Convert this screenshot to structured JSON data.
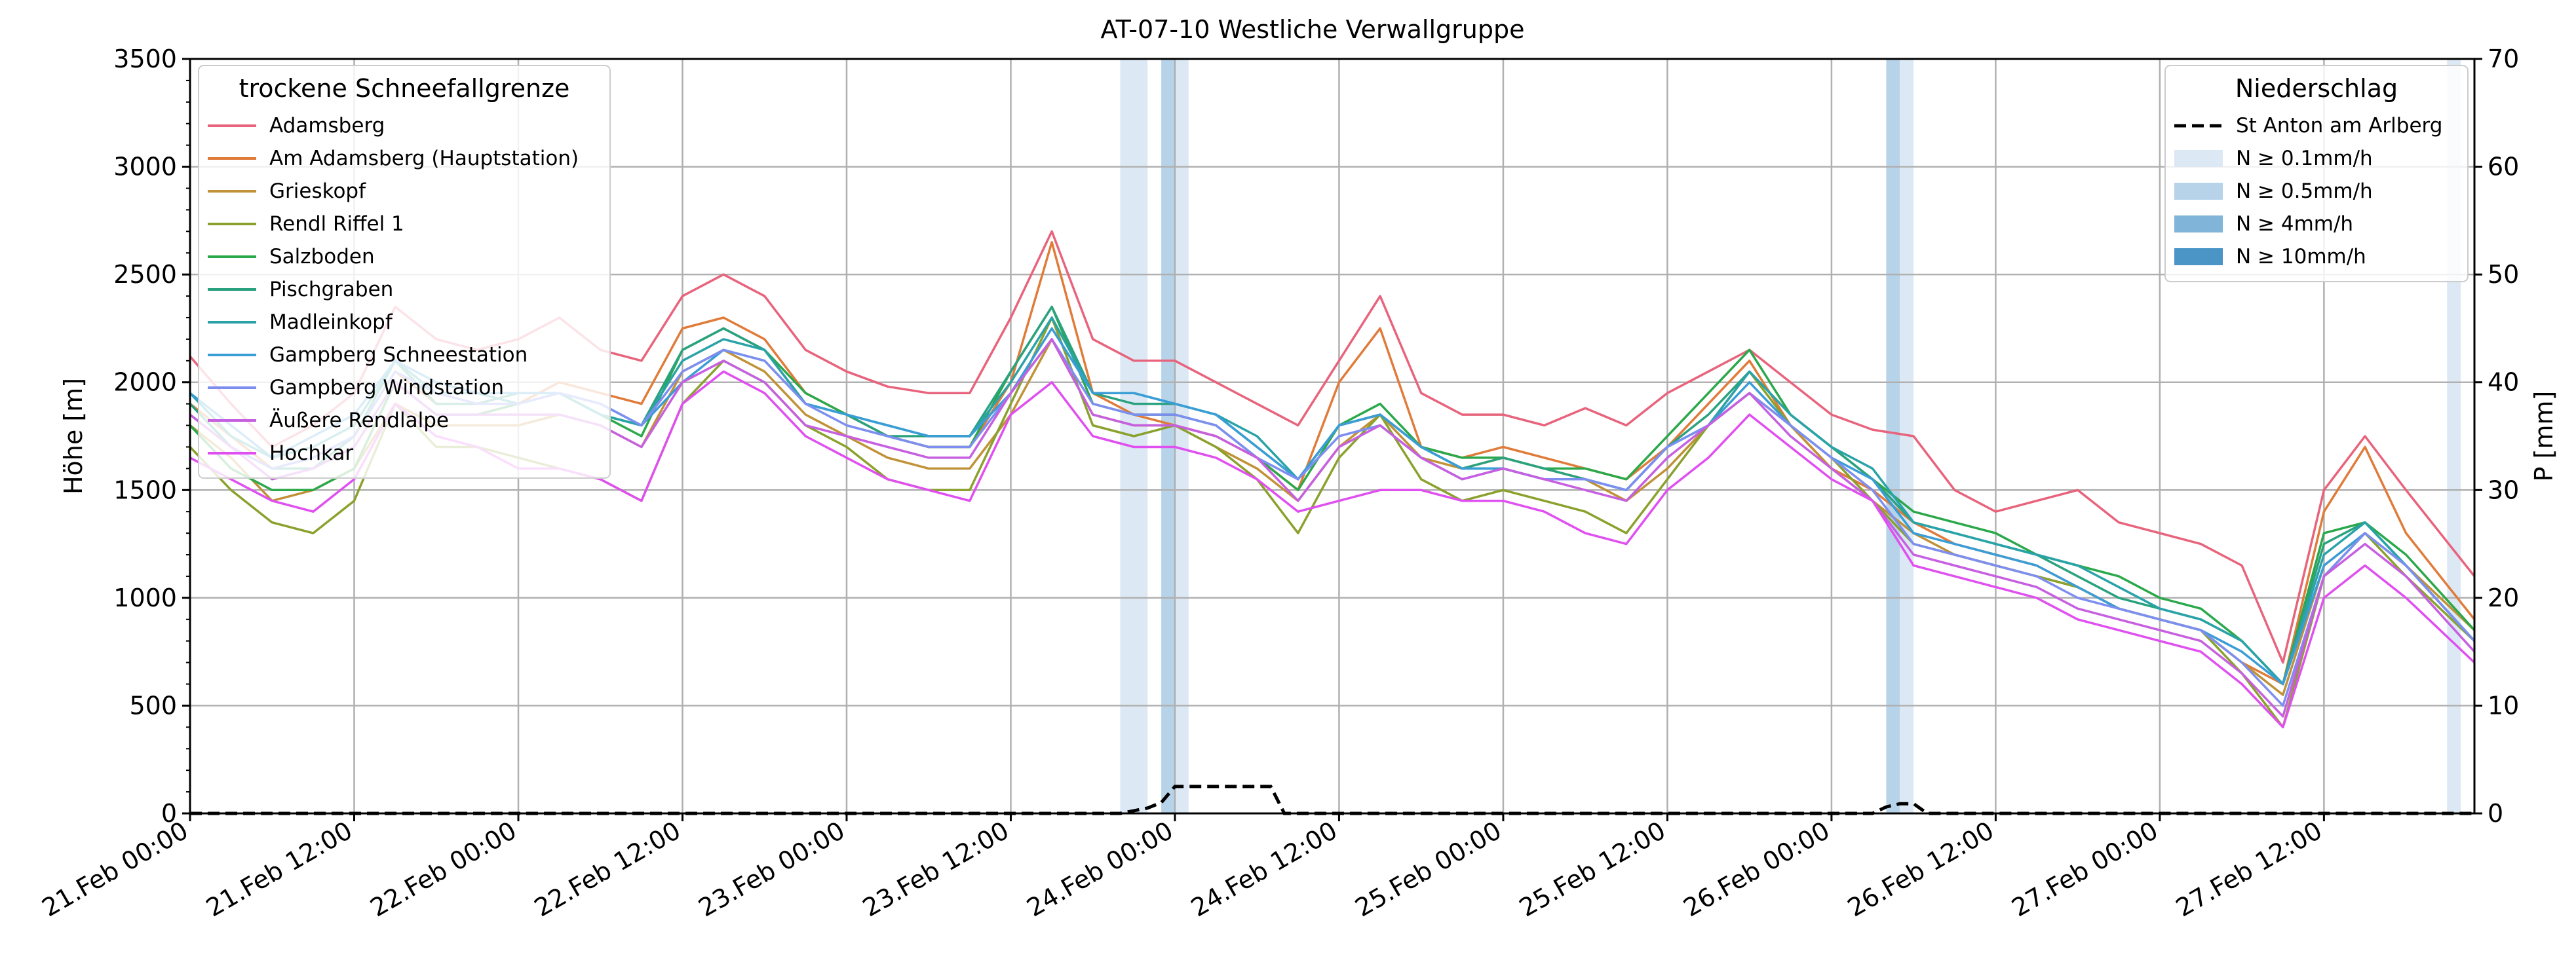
{
  "chart_data": {
    "type": "line",
    "title": "AT-07-10 Westliche Verwallgruppe",
    "ylabel": "Höhe [m]",
    "y2label": "P [mm]",
    "ylim": [
      0,
      3500
    ],
    "y2lim": [
      0,
      70
    ],
    "yticks": [
      0,
      500,
      1000,
      1500,
      2000,
      2500,
      3000,
      3500
    ],
    "y2ticks": [
      0,
      10,
      20,
      30,
      40,
      50,
      60,
      70
    ],
    "xlim_hours": [
      0,
      167
    ],
    "xticks": [
      {
        "h": 0,
        "label": "21.Feb 00:00"
      },
      {
        "h": 12,
        "label": "21.Feb 12:00"
      },
      {
        "h": 24,
        "label": "22.Feb 00:00"
      },
      {
        "h": 36,
        "label": "22.Feb 12:00"
      },
      {
        "h": 48,
        "label": "23.Feb 00:00"
      },
      {
        "h": 60,
        "label": "23.Feb 12:00"
      },
      {
        "h": 72,
        "label": "24.Feb 00:00"
      },
      {
        "h": 84,
        "label": "24.Feb 12:00"
      },
      {
        "h": 96,
        "label": "25.Feb 00:00"
      },
      {
        "h": 108,
        "label": "25.Feb 12:00"
      },
      {
        "h": 120,
        "label": "26.Feb 00:00"
      },
      {
        "h": 132,
        "label": "26.Feb 12:00"
      },
      {
        "h": 144,
        "label": "27.Feb 00:00"
      },
      {
        "h": 156,
        "label": "27.Feb 12:00"
      }
    ],
    "grid": true,
    "legend_left": {
      "title": "trockene Schneefallgrenze",
      "placement": "upper-left"
    },
    "legend_right": {
      "title": "Niederschlag",
      "placement": "upper-right",
      "precip_line_label": "St Anton am Arlberg",
      "bands": [
        {
          "label": "N ≥ 0.1mm/h",
          "color": "#dce9f5"
        },
        {
          "label": "N ≥ 0.5mm/h",
          "color": "#b7d3ea"
        },
        {
          "label": "N ≥ 4mm/h",
          "color": "#80b5d9"
        },
        {
          "label": "N ≥ 10mm/h",
          "color": "#4a94c6"
        }
      ]
    },
    "precip_bands": [
      {
        "start": 68.0,
        "end": 70.0,
        "level": 0
      },
      {
        "start": 71.0,
        "end": 72.0,
        "level": 1
      },
      {
        "start": 72.0,
        "end": 73.0,
        "level": 0
      },
      {
        "start": 124.0,
        "end": 125.0,
        "level": 1
      },
      {
        "start": 125.0,
        "end": 126.0,
        "level": 0
      },
      {
        "start": 165.0,
        "end": 166.0,
        "level": 0
      }
    ],
    "precip_series": {
      "name": "St Anton am Arlberg",
      "color": "#000000",
      "points": [
        [
          0,
          0
        ],
        [
          68,
          0
        ],
        [
          70,
          0.5
        ],
        [
          71,
          1
        ],
        [
          72,
          2.5
        ],
        [
          73,
          2.5
        ],
        [
          79,
          2.5
        ],
        [
          80,
          0
        ],
        [
          123,
          0
        ],
        [
          124,
          0.6
        ],
        [
          125,
          0.9
        ],
        [
          126,
          0.9
        ],
        [
          127,
          0
        ],
        [
          167,
          0
        ]
      ]
    },
    "series_keyframe_hours": [
      0,
      3,
      6,
      9,
      12,
      15,
      18,
      21,
      24,
      27,
      30,
      33,
      36,
      39,
      42,
      45,
      48,
      51,
      54,
      57,
      60,
      63,
      66,
      69,
      72,
      75,
      78,
      81,
      84,
      87,
      90,
      93,
      96,
      99,
      102,
      105,
      108,
      111,
      114,
      117,
      120,
      123,
      126,
      129,
      132,
      135,
      138,
      141,
      144,
      147,
      150,
      153,
      156,
      159,
      162,
      167
    ],
    "series": [
      {
        "name": "Adamsberg",
        "color": "#e8637c",
        "values": [
          2120,
          1900,
          1700,
          1800,
          1950,
          2350,
          2200,
          2150,
          2200,
          2300,
          2150,
          2100,
          2400,
          2500,
          2400,
          2150,
          2050,
          1980,
          1950,
          1950,
          2300,
          2700,
          2200,
          2100,
          2100,
          2000,
          1900,
          1800,
          2100,
          2400,
          1950,
          1850,
          1850,
          1800,
          1880,
          1800,
          1950,
          2050,
          2150,
          2000,
          1850,
          1780,
          1750,
          1500,
          1400,
          1450,
          1500,
          1350,
          1300,
          1250,
          1150,
          700,
          1500,
          1750,
          1500,
          1100
        ]
      },
      {
        "name": "Am Adamsberg (Hauptstation)",
        "color": "#e07b39",
        "values": [
          1900,
          1750,
          1600,
          1650,
          1750,
          2050,
          1900,
          1900,
          1900,
          2000,
          1950,
          1900,
          2250,
          2300,
          2200,
          1950,
          1850,
          1750,
          1700,
          1700,
          2000,
          2650,
          1950,
          1850,
          1800,
          1750,
          1650,
          1500,
          2000,
          2250,
          1700,
          1650,
          1700,
          1650,
          1600,
          1550,
          1700,
          1900,
          2100,
          1800,
          1600,
          1500,
          1350,
          1250,
          1200,
          1150,
          1050,
          950,
          900,
          850,
          700,
          600,
          1400,
          1700,
          1300,
          900
        ]
      },
      {
        "name": "Grieskopf",
        "color": "#c09237",
        "values": [
          1800,
          1650,
          1450,
          1500,
          1600,
          1900,
          1800,
          1800,
          1800,
          1850,
          1800,
          1700,
          2050,
          2150,
          2050,
          1850,
          1750,
          1650,
          1600,
          1600,
          1850,
          2200,
          1850,
          1800,
          1800,
          1700,
          1600,
          1450,
          1700,
          1850,
          1650,
          1600,
          1650,
          1600,
          1550,
          1450,
          1600,
          1800,
          1950,
          1800,
          1600,
          1450,
          1300,
          1200,
          1150,
          1100,
          1050,
          950,
          900,
          850,
          700,
          550,
          1150,
          1300,
          1150,
          850
        ]
      },
      {
        "name": "Rendl Riffel 1",
        "color": "#8aa12d",
        "values": [
          1700,
          1500,
          1350,
          1300,
          1450,
          1900,
          1700,
          1700,
          1650,
          1600,
          1550,
          1450,
          1900,
          2100,
          2000,
          1800,
          1700,
          1550,
          1500,
          1500,
          1900,
          2300,
          1800,
          1750,
          1800,
          1700,
          1550,
          1300,
          1650,
          1850,
          1550,
          1450,
          1500,
          1450,
          1400,
          1300,
          1550,
          1800,
          2050,
          1800,
          1650,
          1450,
          1250,
          1200,
          1150,
          1100,
          1050,
          950,
          900,
          850,
          650,
          400,
          1100,
          1300,
          1100,
          800
        ]
      },
      {
        "name": "Salzboden",
        "color": "#2aa84a",
        "values": [
          1800,
          1600,
          1500,
          1500,
          1600,
          2000,
          1850,
          1850,
          1900,
          1950,
          1850,
          1750,
          2150,
          2250,
          2150,
          1950,
          1850,
          1750,
          1700,
          1700,
          2050,
          2350,
          1900,
          1850,
          1850,
          1800,
          1650,
          1500,
          1800,
          1900,
          1700,
          1650,
          1650,
          1600,
          1600,
          1550,
          1750,
          1950,
          2150,
          1850,
          1700,
          1550,
          1400,
          1350,
          1300,
          1200,
          1150,
          1100,
          1000,
          950,
          800,
          600,
          1300,
          1350,
          1200,
          850
        ]
      },
      {
        "name": "Pischgraben",
        "color": "#2ba27f",
        "values": [
          1900,
          1700,
          1600,
          1600,
          1750,
          2100,
          1900,
          1900,
          1950,
          1950,
          1850,
          1800,
          2150,
          2250,
          2150,
          1900,
          1850,
          1750,
          1750,
          1750,
          2050,
          2350,
          1950,
          1900,
          1900,
          1850,
          1700,
          1550,
          1800,
          1850,
          1700,
          1600,
          1650,
          1600,
          1550,
          1500,
          1700,
          1850,
          2050,
          1850,
          1700,
          1550,
          1350,
          1300,
          1250,
          1200,
          1100,
          1000,
          950,
          900,
          800,
          600,
          1250,
          1350,
          1150,
          800
        ]
      },
      {
        "name": "Madleinkopf",
        "color": "#2aa3a8",
        "values": [
          1950,
          1750,
          1650,
          1700,
          1800,
          2100,
          1950,
          1950,
          1900,
          1950,
          1850,
          1800,
          2100,
          2200,
          2150,
          1900,
          1850,
          1800,
          1750,
          1750,
          2000,
          2300,
          1950,
          1950,
          1900,
          1850,
          1750,
          1550,
          1800,
          1850,
          1700,
          1600,
          1600,
          1550,
          1550,
          1500,
          1700,
          1800,
          2050,
          1850,
          1700,
          1600,
          1350,
          1300,
          1250,
          1200,
          1150,
          1050,
          950,
          900,
          800,
          600,
          1200,
          1350,
          1150,
          800
        ]
      },
      {
        "name": "Gampberg Schneestation",
        "color": "#3a9dd6",
        "values": [
          1950,
          1800,
          1650,
          1750,
          1850,
          2100,
          2000,
          1950,
          1950,
          1950,
          1900,
          1800,
          2000,
          2150,
          2100,
          1900,
          1850,
          1800,
          1750,
          1750,
          1950,
          2250,
          1950,
          1950,
          1900,
          1850,
          1700,
          1550,
          1800,
          1850,
          1700,
          1600,
          1600,
          1550,
          1550,
          1500,
          1700,
          1800,
          2000,
          1800,
          1650,
          1550,
          1300,
          1250,
          1200,
          1150,
          1050,
          950,
          900,
          850,
          750,
          600,
          1150,
          1300,
          1150,
          800
        ]
      },
      {
        "name": "Gampberg Windstation",
        "color": "#7d8ef0",
        "values": [
          1850,
          1700,
          1600,
          1650,
          1750,
          2050,
          1950,
          1900,
          1900,
          1950,
          1900,
          1800,
          2050,
          2150,
          2100,
          1900,
          1800,
          1750,
          1700,
          1700,
          1950,
          2200,
          1900,
          1850,
          1850,
          1800,
          1650,
          1550,
          1750,
          1800,
          1650,
          1550,
          1600,
          1550,
          1550,
          1500,
          1700,
          1800,
          1950,
          1800,
          1650,
          1500,
          1250,
          1200,
          1150,
          1100,
          1000,
          950,
          900,
          850,
          700,
          500,
          1100,
          1300,
          1150,
          800
        ]
      },
      {
        "name": "Äußere Rendlalpe",
        "color": "#c65fe0",
        "values": [
          1850,
          1700,
          1550,
          1600,
          1700,
          2000,
          1850,
          1850,
          1850,
          1850,
          1800,
          1700,
          2000,
          2100,
          2000,
          1800,
          1750,
          1700,
          1650,
          1650,
          1950,
          2200,
          1850,
          1800,
          1800,
          1750,
          1650,
          1450,
          1700,
          1800,
          1650,
          1550,
          1600,
          1550,
          1500,
          1450,
          1650,
          1800,
          1950,
          1750,
          1600,
          1450,
          1200,
          1150,
          1100,
          1050,
          950,
          900,
          850,
          800,
          650,
          450,
          1100,
          1250,
          1100,
          750
        ]
      },
      {
        "name": "Hochkar",
        "color": "#e04ff0",
        "values": [
          1650,
          1550,
          1450,
          1400,
          1550,
          1900,
          1750,
          1700,
          1600,
          1600,
          1550,
          1450,
          1900,
          2050,
          1950,
          1750,
          1650,
          1550,
          1500,
          1450,
          1850,
          2000,
          1750,
          1700,
          1700,
          1650,
          1550,
          1400,
          1450,
          1500,
          1500,
          1450,
          1450,
          1400,
          1300,
          1250,
          1500,
          1650,
          1850,
          1700,
          1550,
          1450,
          1150,
          1100,
          1050,
          1000,
          900,
          850,
          800,
          750,
          600,
          400,
          1000,
          1150,
          1000,
          700
        ]
      }
    ]
  }
}
